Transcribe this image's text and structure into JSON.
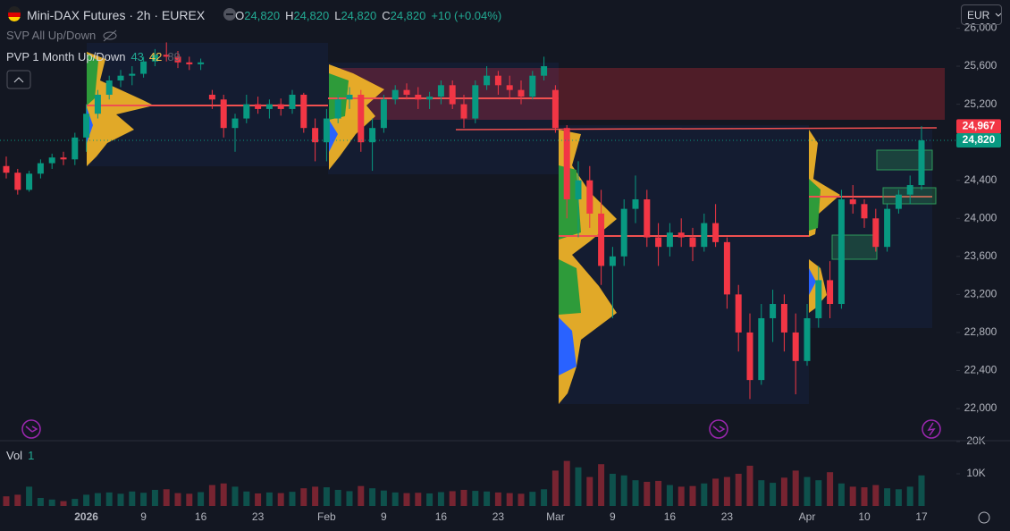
{
  "chart_data": {
    "type": "candlestick",
    "title": "Mini-DAX Futures · 2h · EUREX",
    "legend": [
      {
        "key": "O",
        "value": "24,820"
      },
      {
        "key": "H",
        "value": "24,820"
      },
      {
        "key": "L",
        "value": "24,820"
      },
      {
        "key": "C",
        "value": "24,820"
      }
    ],
    "change": "+10 (+0.04%)",
    "indicators": [
      {
        "name": "SVP All Up/Down"
      },
      {
        "name": "PVP 1 Month Up/Down",
        "values": [
          "43",
          "42",
          "89"
        ]
      }
    ],
    "currency": "EUR",
    "up_color": "#089981",
    "down_color": "#f23645",
    "grid": false,
    "x": [
      "2025-12-17",
      "2025-12-18",
      "2025-12-19",
      "2025-12-22",
      "2025-12-23",
      "2025-12-29",
      "2025-12-30",
      "2026-01-02",
      "2026-01-05",
      "2026-01-06",
      "2026-01-07",
      "2026-01-08",
      "2026-01-09",
      "2026-01-12",
      "2026-01-13",
      "2026-01-14",
      "2026-01-15",
      "2026-01-16",
      "2026-01-19",
      "2026-01-20",
      "2026-01-21",
      "2026-01-22",
      "2026-01-23",
      "2026-01-26",
      "2026-01-27",
      "2026-01-28",
      "2026-01-29",
      "2026-01-30",
      "2026-02-02",
      "2026-02-03",
      "2026-02-04",
      "2026-02-05",
      "2026-02-06",
      "2026-02-09",
      "2026-02-10",
      "2026-02-11",
      "2026-02-12",
      "2026-02-13",
      "2026-02-16",
      "2026-02-17",
      "2026-02-18",
      "2026-02-19",
      "2026-02-20",
      "2026-02-23",
      "2026-02-24",
      "2026-02-25",
      "2026-02-26",
      "2026-02-27",
      "2026-03-02",
      "2026-03-03",
      "2026-03-04",
      "2026-03-05",
      "2026-03-06",
      "2026-03-09",
      "2026-03-10",
      "2026-03-11",
      "2026-03-12",
      "2026-03-13",
      "2026-03-16",
      "2026-03-17",
      "2026-03-18",
      "2026-03-19",
      "2026-03-20",
      "2026-03-23",
      "2026-03-24",
      "2026-03-25",
      "2026-03-26",
      "2026-03-27",
      "2026-03-30",
      "2026-03-31",
      "2026-04-01",
      "2026-04-02",
      "2026-04-07",
      "2026-04-08",
      "2026-04-09",
      "2026-04-10",
      "2026-04-13",
      "2026-04-14",
      "2026-04-15",
      "2026-04-16",
      "2026-04-17"
    ],
    "open": [
      24550,
      24480,
      24300,
      24470,
      24580,
      24640,
      24620,
      24850,
      25100,
      25300,
      25450,
      25500,
      25520,
      25650,
      25720,
      25700,
      25640,
      25620,
      25300,
      25250,
      24950,
      25050,
      25200,
      25150,
      25200,
      25150,
      25300,
      24950,
      24800,
      25050,
      25250,
      25300,
      24800,
      24950,
      25250,
      25350,
      25300,
      25250,
      25280,
      25400,
      25200,
      25050,
      25400,
      25500,
      25400,
      25350,
      25280,
      25500,
      25350,
      24950,
      24200,
      24400,
      24050,
      23500,
      23600,
      24100,
      24200,
      23800,
      23700,
      23850,
      23800,
      23700,
      23950,
      23750,
      23200,
      22800,
      22300,
      22950,
      23100,
      22800,
      22500,
      22950,
      23350,
      23100,
      24200,
      24150,
      24000,
      23700,
      24100,
      24250,
      24350
    ],
    "high": [
      24650,
      24520,
      24500,
      24620,
      24680,
      24700,
      24900,
      25200,
      25350,
      25500,
      25560,
      25600,
      25700,
      25780,
      25850,
      25760,
      25700,
      25680,
      25350,
      25300,
      25100,
      25300,
      25280,
      25250,
      25260,
      25350,
      25320,
      25050,
      25150,
      25300,
      25380,
      25350,
      25050,
      25300,
      25400,
      25420,
      25380,
      25330,
      25450,
      25450,
      25300,
      25450,
      25600,
      25550,
      25500,
      25450,
      25550,
      25700,
      25400,
      24980,
      24600,
      24550,
      24300,
      23700,
      24200,
      24450,
      24300,
      23950,
      23950,
      24000,
      23900,
      24050,
      24150,
      23800,
      23300,
      23000,
      23100,
      23250,
      23200,
      23000,
      23100,
      23500,
      23550,
      24300,
      24350,
      24200,
      24100,
      24150,
      24300,
      24450,
      24970
    ],
    "low": [
      24420,
      24250,
      24280,
      24420,
      24520,
      24560,
      24560,
      24700,
      25050,
      25250,
      25380,
      25400,
      25480,
      25600,
      25650,
      25580,
      25560,
      25560,
      25150,
      24850,
      24700,
      25000,
      25100,
      25050,
      25080,
      25100,
      24900,
      24600,
      24600,
      25000,
      25150,
      24700,
      24500,
      24900,
      25200,
      25250,
      25150,
      25150,
      25200,
      25150,
      24950,
      25000,
      25350,
      25300,
      25250,
      25200,
      25250,
      25450,
      24900,
      24000,
      23800,
      23900,
      23300,
      22950,
      23500,
      23950,
      23700,
      23500,
      23600,
      23700,
      23550,
      23650,
      23700,
      23050,
      22600,
      22100,
      22250,
      22700,
      22600,
      22150,
      22450,
      22850,
      22950,
      23050,
      24050,
      23900,
      23650,
      23650,
      24050,
      24150,
      24300
    ],
    "close": [
      24480,
      24300,
      24470,
      24580,
      24640,
      24620,
      24850,
      25100,
      25300,
      25450,
      25500,
      25520,
      25650,
      25720,
      25700,
      25640,
      25620,
      25640,
      25250,
      24950,
      25050,
      25200,
      25150,
      25200,
      25150,
      25300,
      24950,
      24800,
      25050,
      25250,
      25300,
      24800,
      24950,
      25250,
      25350,
      25300,
      25250,
      25280,
      25400,
      25200,
      25050,
      25400,
      25500,
      25400,
      25350,
      25280,
      25500,
      25600,
      24950,
      24200,
      24400,
      24050,
      23500,
      23600,
      24100,
      24200,
      23800,
      23700,
      23850,
      23800,
      23700,
      23950,
      23750,
      23200,
      22800,
      22300,
      22950,
      23100,
      22800,
      22500,
      22950,
      23350,
      23100,
      24200,
      24150,
      24000,
      23700,
      24100,
      24250,
      24350,
      24820
    ],
    "ylim": [
      21662,
      26296
    ],
    "yticks": [
      {
        "value": 22000,
        "label": "22,000"
      },
      {
        "value": 22400,
        "label": "22,400"
      },
      {
        "value": 22800,
        "label": "22,800"
      },
      {
        "value": 23200,
        "label": "23,200"
      },
      {
        "value": 23600,
        "label": "23,600"
      },
      {
        "value": 24000,
        "label": "24,000"
      },
      {
        "value": 24400,
        "label": "24,400"
      },
      {
        "value": 24800,
        "label": "24,800"
      },
      {
        "value": 25200,
        "label": "25,200"
      },
      {
        "value": 25600,
        "label": "25,600"
      },
      {
        "value": 26000,
        "label": "26,000"
      }
    ],
    "xticks": [
      {
        "value": "2026-01-02",
        "label": "2026"
      },
      {
        "value": "2026-01-09",
        "label": "9"
      },
      {
        "value": "2026-01-16",
        "label": "16"
      },
      {
        "value": "2026-01-23",
        "label": "23"
      },
      {
        "value": "2026-02-02",
        "label": "Feb"
      },
      {
        "value": "2026-02-09",
        "label": "9"
      },
      {
        "value": "2026-02-16",
        "label": "16"
      },
      {
        "value": "2026-02-23",
        "label": "23"
      },
      {
        "value": "2026-03-02",
        "label": "Mar"
      },
      {
        "value": "2026-03-09",
        "label": "9"
      },
      {
        "value": "2026-03-16",
        "label": "16"
      },
      {
        "value": "2026-03-23",
        "label": "23"
      },
      {
        "value": "2026-04-01",
        "label": "Apr"
      },
      {
        "value": "2026-04-10",
        "label": "10"
      },
      {
        "value": "2026-04-17",
        "label": "17"
      }
    ],
    "markers": [
      {
        "value": 24967,
        "label": "24,967",
        "color": "#f23645"
      },
      {
        "value": 24820,
        "label": "24,820",
        "color": "#089981"
      }
    ],
    "volume": {
      "name": "Vol",
      "last": 1,
      "values": [
        3000,
        3500,
        6000,
        2500,
        2000,
        1500,
        2200,
        3500,
        4000,
        4200,
        3800,
        4500,
        4100,
        5000,
        5200,
        4000,
        3800,
        4300,
        6500,
        7000,
        6000,
        4500,
        3900,
        4200,
        4000,
        4400,
        5500,
        6000,
        5800,
        5000,
        4600,
        6200,
        5500,
        4800,
        4200,
        4000,
        4100,
        3900,
        4300,
        4600,
        5000,
        4700,
        4500,
        4200,
        4000,
        3800,
        4400,
        5200,
        11000,
        14000,
        12000,
        9000,
        13000,
        10000,
        9500,
        8000,
        7500,
        7800,
        6500,
        6000,
        6200,
        7000,
        8500,
        9000,
        10000,
        12500,
        8000,
        7200,
        8800,
        11000,
        9000,
        8000,
        10500,
        7000,
        6000,
        5800,
        6500,
        5500,
        5200,
        6000,
        9500
      ],
      "ylim": [
        0,
        20000
      ],
      "yticks": [
        {
          "value": 10000,
          "label": "10K"
        },
        {
          "value": 20000,
          "label": "20K"
        }
      ]
    }
  }
}
